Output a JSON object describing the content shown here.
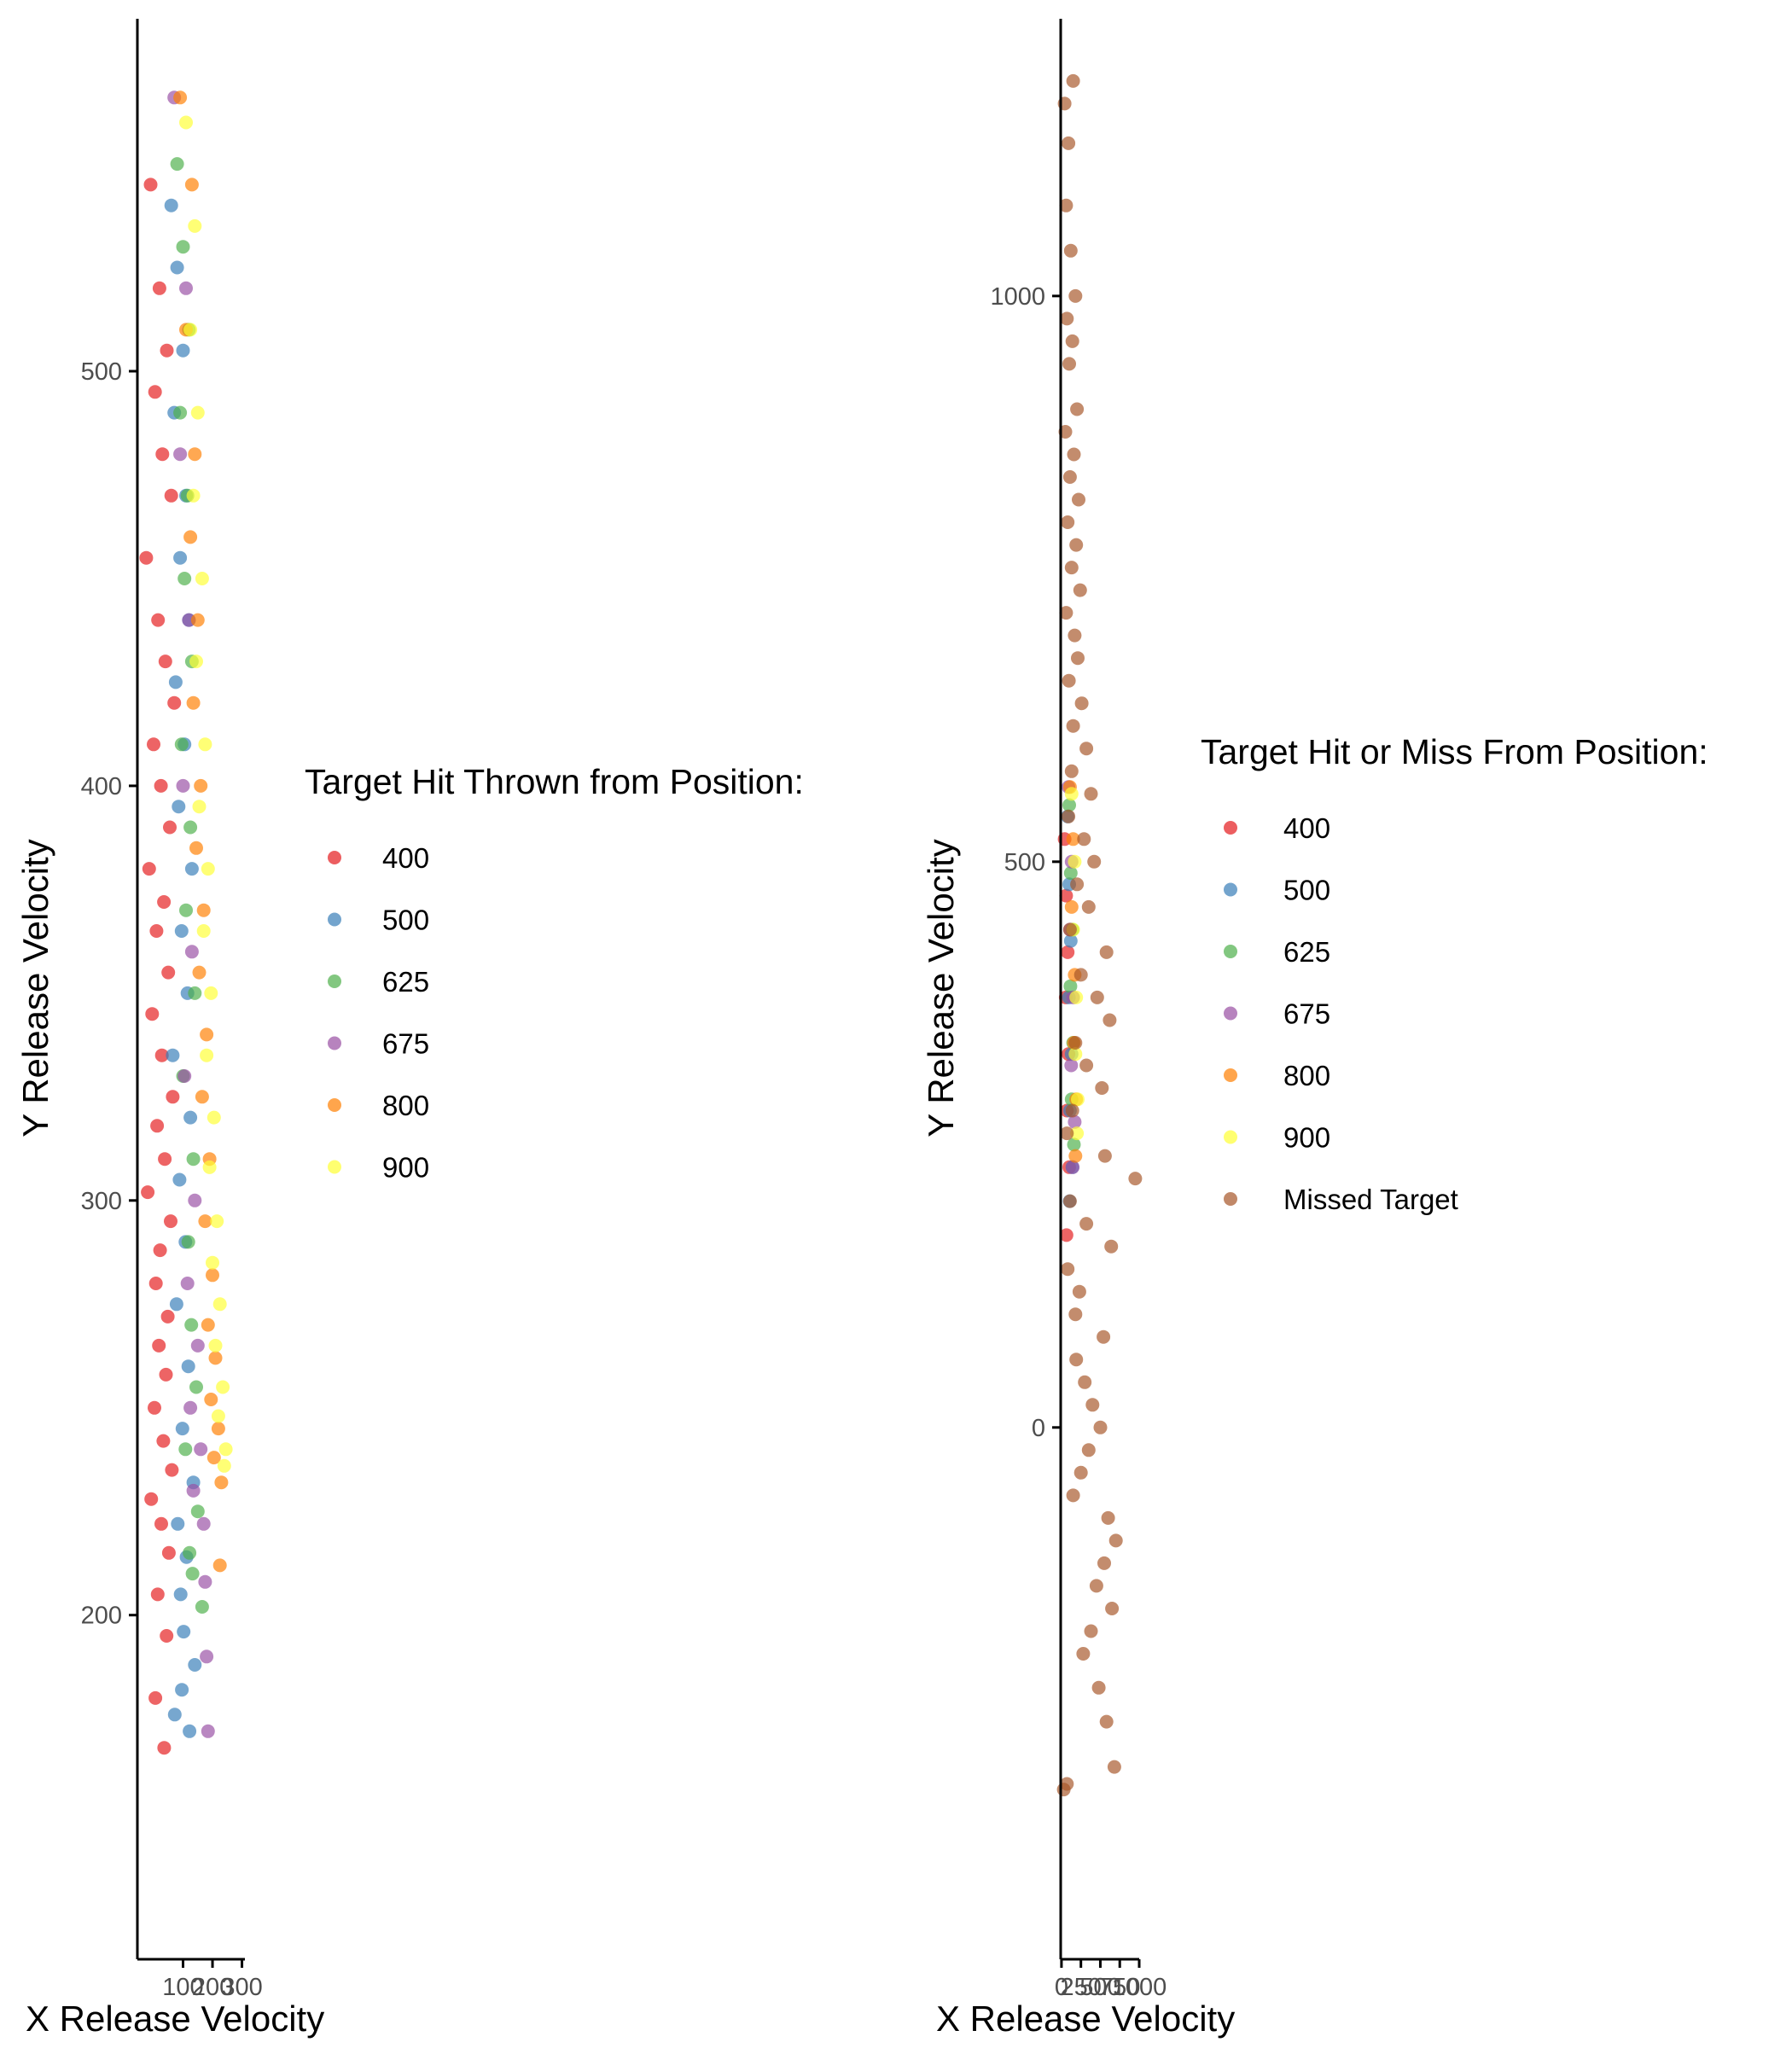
{
  "chart_data": [
    {
      "type": "scatter",
      "xlabel": "X Release Velocity",
      "ylabel": "Y Release Velocity",
      "xlim": [
        -55,
        310
      ],
      "ylim": [
        117,
        585
      ],
      "xticks": [
        100,
        200,
        300
      ],
      "yticks": [
        200,
        300,
        400,
        500
      ],
      "grid": false,
      "legend": {
        "title": "Target Hit Thrown from Position:",
        "placement": "right",
        "items": [
          "400",
          "500",
          "625",
          "675",
          "800",
          "900"
        ]
      },
      "series": [
        {
          "name": "400",
          "color": "#E41A1C",
          "x": [
            -10,
            20,
            45,
            5,
            30,
            60,
            -25,
            15,
            40,
            70,
            0,
            25,
            55,
            -15,
            35,
            10,
            50,
            -5,
            28,
            65,
            12,
            38,
            -20,
            58,
            22,
            8,
            48,
            18,
            42,
            3,
            33,
            62,
            -8,
            26,
            52,
            14,
            44,
            6,
            36
          ],
          "y": [
            545,
            520,
            505,
            495,
            480,
            470,
            455,
            440,
            430,
            420,
            410,
            400,
            390,
            380,
            372,
            365,
            355,
            345,
            335,
            325,
            318,
            310,
            302,
            295,
            288,
            280,
            272,
            265,
            258,
            250,
            242,
            235,
            228,
            222,
            215,
            205,
            195,
            180,
            168
          ]
        },
        {
          "name": "500",
          "color": "#377EB8",
          "x": [
            60,
            80,
            100,
            70,
            110,
            90,
            120,
            75,
            105,
            85,
            130,
            95,
            115,
            65,
            125,
            88,
            108,
            78,
            118,
            98,
            135,
            82,
            112,
            92,
            102,
            140,
            72,
            122,
            96
          ],
          "y": [
            540,
            525,
            505,
            490,
            470,
            455,
            440,
            425,
            410,
            395,
            380,
            365,
            350,
            335,
            320,
            305,
            290,
            275,
            260,
            245,
            232,
            222,
            214,
            205,
            196,
            188,
            176,
            172,
            182
          ]
        },
        {
          "name": "625",
          "color": "#4DAF4A",
          "x": [
            80,
            100,
            120,
            90,
            115,
            105,
            130,
            95,
            125,
            110,
            140,
            100,
            135,
            118,
            128,
            145,
            108,
            150,
            122,
            165,
            132
          ],
          "y": [
            550,
            530,
            510,
            490,
            470,
            450,
            430,
            410,
            390,
            370,
            350,
            330,
            310,
            290,
            270,
            255,
            240,
            225,
            215,
            202,
            210
          ]
        },
        {
          "name": "675",
          "color": "#984EA3",
          "x": [
            70,
            110,
            90,
            120,
            100,
            130,
            105,
            140,
            115,
            150,
            125,
            160,
            135,
            170,
            180,
            175,
            185
          ],
          "y": [
            566,
            520,
            480,
            440,
            400,
            360,
            330,
            300,
            280,
            265,
            250,
            240,
            230,
            222,
            190,
            208,
            172
          ]
        },
        {
          "name": "800",
          "color": "#FF7F00",
          "x": [
            90,
            130,
            110,
            140,
            125,
            150,
            135,
            160,
            145,
            170,
            155,
            180,
            165,
            190,
            175,
            200,
            185,
            210,
            195,
            220,
            205,
            230,
            225
          ],
          "y": [
            566,
            545,
            510,
            480,
            460,
            440,
            420,
            400,
            385,
            370,
            355,
            340,
            325,
            310,
            295,
            282,
            270,
            262,
            252,
            245,
            238,
            232,
            212
          ]
        },
        {
          "name": "900",
          "color": "#FFFF33",
          "x": [
            110,
            140,
            125,
            150,
            135,
            165,
            145,
            175,
            155,
            185,
            170,
            195,
            180,
            205,
            190,
            215,
            200,
            225,
            210,
            235,
            220,
            245,
            240
          ],
          "y": [
            560,
            535,
            510,
            490,
            470,
            450,
            430,
            410,
            395,
            380,
            365,
            350,
            335,
            320,
            308,
            295,
            285,
            275,
            265,
            255,
            248,
            240,
            236
          ]
        }
      ]
    },
    {
      "type": "scatter",
      "xlabel": "X Release Velocity",
      "ylabel": "Y Release Velocity",
      "xlim": [
        -10,
        1000
      ],
      "ylim": [
        -470,
        1245
      ],
      "xticks": [
        0,
        250,
        500,
        750,
        1000
      ],
      "xtick_labels": [
        "0",
        "250",
        "500",
        "750",
        "1000"
      ],
      "yticks": [
        0,
        500,
        1000
      ],
      "grid": false,
      "legend": {
        "title": "Target Hit or Miss From Position:",
        "placement": "right",
        "items": [
          "400",
          "500",
          "625",
          "675",
          "800",
          "900",
          "Missed Target"
        ]
      },
      "series": [
        {
          "name": "400",
          "color": "#E41A1C",
          "x": [
            40,
            60,
            80,
            55,
            90,
            70,
            100,
            65
          ],
          "y": [
            520,
            470,
            420,
            380,
            330,
            280,
            230,
            170
          ]
        },
        {
          "name": "500",
          "color": "#377EB8",
          "x": [
            80,
            100,
            120,
            95,
            130,
            110,
            140,
            105
          ],
          "y": [
            540,
            480,
            430,
            380,
            330,
            280,
            230,
            200
          ]
        },
        {
          "name": "625",
          "color": "#4DAF4A",
          "x": [
            100,
            120,
            140,
            115,
            150,
            130,
            160
          ],
          "y": [
            550,
            490,
            440,
            390,
            340,
            290,
            250
          ]
        },
        {
          "name": "675",
          "color": "#984EA3",
          "x": [
            90,
            130,
            110,
            150,
            125,
            170,
            145
          ],
          "y": [
            566,
            500,
            440,
            380,
            320,
            270,
            230
          ]
        },
        {
          "name": "800",
          "color": "#FF7F00",
          "x": [
            110,
            150,
            130,
            170,
            160,
            190,
            180
          ],
          "y": [
            566,
            520,
            460,
            400,
            340,
            290,
            240
          ]
        },
        {
          "name": "900",
          "color": "#FFFF33",
          "x": [
            130,
            170,
            150,
            190,
            180,
            210,
            200
          ],
          "y": [
            560,
            500,
            440,
            380,
            330,
            290,
            260
          ]
        },
        {
          "name": "Missed Target",
          "color": "#A65628",
          "x": [
            150,
            40,
            90,
            60,
            120,
            180,
            70,
            140,
            100,
            200,
            50,
            160,
            110,
            220,
            80,
            190,
            130,
            240,
            60,
            170,
            210,
            95,
            260,
            150,
            320,
            130,
            380,
            90,
            290,
            420,
            200,
            350,
            110,
            580,
            250,
            460,
            620,
            180,
            320,
            520,
            140,
            70,
            560,
            950,
            110,
            320,
            640,
            80,
            230,
            180,
            540,
            190,
            300,
            400,
            500,
            350,
            250,
            150,
            600,
            700,
            550,
            450,
            650,
            380,
            280,
            480,
            580,
            680,
            30,
            70
          ],
          "y": [
            1190,
            1170,
            1135,
            1080,
            1040,
            1000,
            980,
            960,
            940,
            900,
            880,
            860,
            840,
            820,
            800,
            780,
            760,
            740,
            720,
            700,
            680,
            660,
            640,
            620,
            600,
            580,
            560,
            540,
            520,
            500,
            480,
            460,
            440,
            420,
            400,
            380,
            360,
            340,
            320,
            300,
            280,
            260,
            240,
            220,
            200,
            180,
            160,
            140,
            120,
            100,
            80,
            60,
            40,
            20,
            0,
            -20,
            -40,
            -60,
            -80,
            -100,
            -120,
            -140,
            -160,
            -180,
            -200,
            -230,
            -260,
            -300,
            -320,
            -315
          ]
        }
      ]
    }
  ]
}
